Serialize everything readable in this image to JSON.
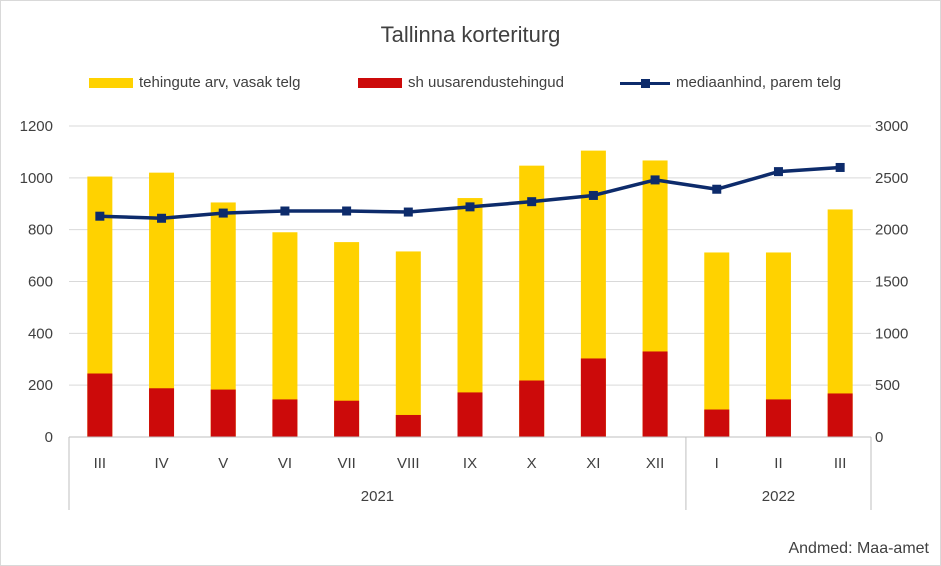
{
  "chart_data": {
    "type": "bar",
    "title": "Tallinna korteriturg",
    "source": "Andmed: Maa-amet",
    "categories": [
      "III",
      "IV",
      "V",
      "VI",
      "VII",
      "VIII",
      "IX",
      "X",
      "XI",
      "XII",
      "I",
      "II",
      "III"
    ],
    "groups": [
      {
        "label": "2021",
        "count": 10
      },
      {
        "label": "2022",
        "count": 3
      }
    ],
    "series": [
      {
        "name": "tehingute arv, vasak telg",
        "type": "bar",
        "axis": "left",
        "color": "#ffd200",
        "values": [
          1005,
          1020,
          905,
          790,
          752,
          716,
          922,
          1047,
          1105,
          1067,
          712,
          712,
          878
        ]
      },
      {
        "name": "sh uusarendustehingud",
        "type": "bar",
        "axis": "left",
        "color": "#cc0a0a",
        "values": [
          245,
          188,
          183,
          145,
          140,
          85,
          172,
          218,
          303,
          330,
          106,
          145,
          168
        ]
      },
      {
        "name": "mediaanhind, parem telg",
        "type": "line",
        "axis": "right",
        "color": "#0d2b6b",
        "values": [
          2130,
          2110,
          2160,
          2180,
          2180,
          2170,
          2220,
          2270,
          2330,
          2480,
          2390,
          2560,
          2600
        ]
      }
    ],
    "y_left": {
      "min": 0,
      "max": 1200,
      "ticks": [
        0,
        200,
        400,
        600,
        800,
        1000,
        1200
      ]
    },
    "y_right": {
      "min": 0,
      "max": 3000,
      "ticks": [
        0,
        500,
        1000,
        1500,
        2000,
        2500,
        3000
      ]
    },
    "grid": true,
    "legend_position": "top"
  }
}
